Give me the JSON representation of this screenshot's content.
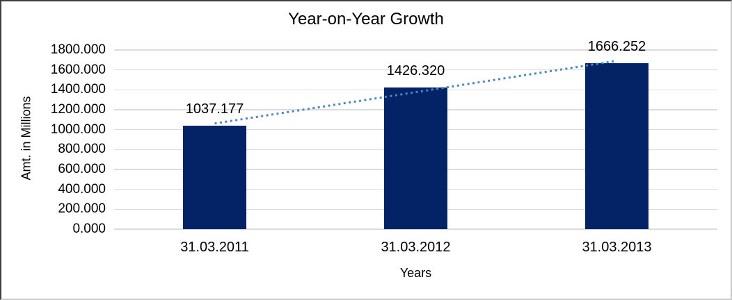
{
  "chart_data": {
    "type": "bar",
    "title": "Year-on-Year Growth",
    "xlabel": "Years",
    "ylabel": "Amt. in Millions",
    "categories": [
      "31.03.2011",
      "31.03.2012",
      "31.03.2013"
    ],
    "values": [
      1037.177,
      1426.32,
      1666.252
    ],
    "data_labels": [
      "1037.177",
      "1426.320",
      "1666.252"
    ],
    "ylim": [
      0,
      1800
    ],
    "ytick_step": 200,
    "ytick_labels": [
      "0.000",
      "200.000",
      "400.000",
      "600.000",
      "800.000",
      "1000.000",
      "1200.000",
      "1400.000",
      "1600.000",
      "1800.000"
    ],
    "grid": true,
    "legend": "none",
    "trendline": {
      "type": "linear",
      "style": "dotted",
      "color": "#4A86C6"
    },
    "colors": {
      "bar": "#032366",
      "gridline": "#DCDCDC",
      "text": "#000000"
    }
  }
}
